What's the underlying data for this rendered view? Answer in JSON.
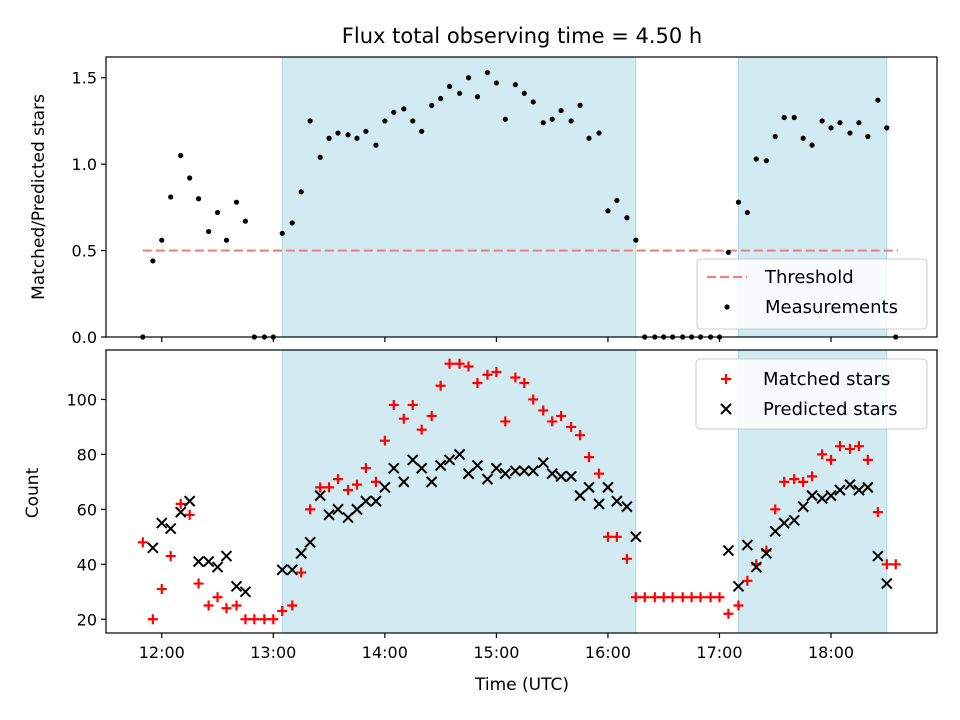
{
  "chart_data": {
    "type": "scatter",
    "title": "Flux total observing time = 4.50 h",
    "xlabel": "Time (UTC)",
    "x_unit": "hours (UTC)",
    "xlim": [
      11.5,
      18.95
    ],
    "x_ticks": [
      12,
      13,
      14,
      15,
      16,
      17,
      18
    ],
    "x_tick_labels": [
      "12:00",
      "13:00",
      "14:00",
      "15:00",
      "16:00",
      "17:00",
      "18:00"
    ],
    "shaded_intervals": [
      [
        13.08,
        16.25
      ],
      [
        17.17,
        18.5
      ]
    ],
    "shade_color": "#add8e6",
    "top_panel": {
      "ylabel": "Matched/Predicted stars",
      "ylim": [
        0,
        1.62
      ],
      "y_ticks": [
        0.0,
        0.5,
        1.0,
        1.5
      ],
      "y_tick_labels": [
        "0.0",
        "0.5",
        "1.0",
        "1.5"
      ],
      "threshold": {
        "name": "Threshold",
        "value": 0.5,
        "x_range": [
          11.83,
          18.6
        ],
        "color": "#f08080"
      },
      "measurements": {
        "name": "Measurements",
        "color": "#000000",
        "x": [
          11.83,
          11.92,
          12.0,
          12.08,
          12.17,
          12.25,
          12.33,
          12.42,
          12.5,
          12.58,
          12.67,
          12.75,
          12.83,
          12.92,
          13.0,
          13.08,
          13.17,
          13.25,
          13.33,
          13.42,
          13.5,
          13.58,
          13.67,
          13.75,
          13.83,
          13.92,
          14.0,
          14.08,
          14.17,
          14.25,
          14.33,
          14.42,
          14.5,
          14.58,
          14.67,
          14.75,
          14.83,
          14.92,
          15.0,
          15.08,
          15.17,
          15.25,
          15.33,
          15.42,
          15.5,
          15.58,
          15.67,
          15.75,
          15.83,
          15.92,
          16.0,
          16.08,
          16.17,
          16.25,
          16.33,
          16.42,
          16.5,
          16.58,
          16.67,
          16.75,
          16.83,
          16.92,
          17.0,
          17.08,
          17.17,
          17.25,
          17.33,
          17.42,
          17.5,
          17.58,
          17.67,
          17.75,
          17.83,
          17.92,
          18.0,
          18.08,
          18.17,
          18.25,
          18.33,
          18.42,
          18.5,
          18.58
        ],
        "y": [
          0.0,
          0.44,
          0.56,
          0.81,
          1.05,
          0.92,
          0.8,
          0.61,
          0.72,
          0.56,
          0.78,
          0.67,
          0.0,
          0.0,
          0.0,
          0.6,
          0.66,
          0.84,
          1.25,
          1.04,
          1.15,
          1.18,
          1.17,
          1.15,
          1.19,
          1.11,
          1.25,
          1.3,
          1.32,
          1.25,
          1.19,
          1.34,
          1.38,
          1.45,
          1.41,
          1.5,
          1.39,
          1.53,
          1.47,
          1.26,
          1.46,
          1.41,
          1.36,
          1.24,
          1.26,
          1.31,
          1.25,
          1.34,
          1.15,
          1.18,
          0.73,
          0.79,
          0.69,
          0.56,
          0.0,
          0.0,
          0.0,
          0.0,
          0.0,
          0.0,
          0.0,
          0.0,
          0.0,
          0.49,
          0.78,
          0.72,
          1.03,
          1.02,
          1.16,
          1.27,
          1.27,
          1.15,
          1.11,
          1.25,
          1.21,
          1.24,
          1.18,
          1.24,
          1.16,
          1.37,
          1.21,
          0.0
        ]
      },
      "legend": [
        {
          "label": "Threshold",
          "marker": "dashed-line"
        },
        {
          "label": "Measurements",
          "marker": "dot"
        }
      ],
      "legend_position": "lower-right"
    },
    "bottom_panel": {
      "ylabel": "Count",
      "ylim": [
        15,
        118
      ],
      "y_ticks": [
        20,
        40,
        60,
        80,
        100
      ],
      "y_tick_labels": [
        "20",
        "40",
        "60",
        "80",
        "100"
      ],
      "series": [
        {
          "name": "Matched stars",
          "marker": "plus",
          "color": "#ff0000",
          "x": [
            11.83,
            11.92,
            12.0,
            12.08,
            12.17,
            12.25,
            12.33,
            12.42,
            12.5,
            12.58,
            12.67,
            12.75,
            12.83,
            12.92,
            13.0,
            13.08,
            13.17,
            13.25,
            13.33,
            13.42,
            13.5,
            13.58,
            13.67,
            13.75,
            13.83,
            13.92,
            14.0,
            14.08,
            14.17,
            14.25,
            14.33,
            14.42,
            14.5,
            14.58,
            14.67,
            14.75,
            14.83,
            14.92,
            15.0,
            15.08,
            15.17,
            15.25,
            15.33,
            15.42,
            15.5,
            15.58,
            15.67,
            15.75,
            15.83,
            15.92,
            16.0,
            16.08,
            16.17,
            16.25,
            16.33,
            16.42,
            16.5,
            16.58,
            16.67,
            16.75,
            16.83,
            16.92,
            17.0,
            17.08,
            17.17,
            17.25,
            17.33,
            17.42,
            17.5,
            17.58,
            17.67,
            17.75,
            17.83,
            17.92,
            18.0,
            18.08,
            18.17,
            18.25,
            18.33,
            18.42,
            18.5,
            18.58
          ],
          "y": [
            48,
            20,
            31,
            43,
            62,
            58,
            33,
            25,
            28,
            24,
            25,
            20,
            20,
            20,
            20,
            23,
            25,
            37,
            60,
            68,
            68,
            71,
            67,
            69,
            75,
            70,
            85,
            98,
            93,
            98,
            89,
            94,
            105,
            113,
            113,
            112,
            106,
            109,
            110,
            92,
            108,
            106,
            100,
            96,
            92,
            94,
            90,
            87,
            79,
            73,
            50,
            50,
            42,
            28,
            28,
            28,
            28,
            28,
            28,
            28,
            28,
            28,
            28,
            22,
            25,
            34,
            40,
            45,
            60,
            70,
            71,
            70,
            72,
            80,
            78,
            83,
            82,
            83,
            78,
            59,
            40,
            40
          ]
        },
        {
          "name": "Predicted stars",
          "marker": "x",
          "color": "#000000",
          "x": [
            11.92,
            12.0,
            12.08,
            12.17,
            12.25,
            12.33,
            12.42,
            12.5,
            12.58,
            12.67,
            12.75,
            13.08,
            13.17,
            13.25,
            13.33,
            13.42,
            13.5,
            13.58,
            13.67,
            13.75,
            13.83,
            13.92,
            14.0,
            14.08,
            14.17,
            14.25,
            14.33,
            14.42,
            14.5,
            14.58,
            14.67,
            14.75,
            14.83,
            14.92,
            15.0,
            15.08,
            15.17,
            15.25,
            15.33,
            15.42,
            15.5,
            15.58,
            15.67,
            15.75,
            15.83,
            15.92,
            16.0,
            16.08,
            16.17,
            16.25,
            17.08,
            17.17,
            17.25,
            17.33,
            17.42,
            17.5,
            17.58,
            17.67,
            17.75,
            17.83,
            17.92,
            18.0,
            18.08,
            18.17,
            18.25,
            18.33,
            18.42,
            18.5
          ],
          "y": [
            46,
            55,
            53,
            59,
            63,
            41,
            41,
            39,
            43,
            32,
            30,
            38,
            38,
            44,
            48,
            65,
            58,
            60,
            57,
            60,
            63,
            63,
            68,
            75,
            70,
            78,
            75,
            70,
            76,
            78,
            80,
            73,
            76,
            71,
            75,
            73,
            74,
            74,
            74,
            77,
            73,
            72,
            72,
            65,
            68,
            62,
            68,
            63,
            61,
            50,
            45,
            32,
            47,
            39,
            44,
            52,
            55,
            56,
            61,
            65,
            64,
            65,
            67,
            69,
            67,
            68,
            43,
            33
          ]
        }
      ],
      "legend_position": "upper-right"
    }
  }
}
